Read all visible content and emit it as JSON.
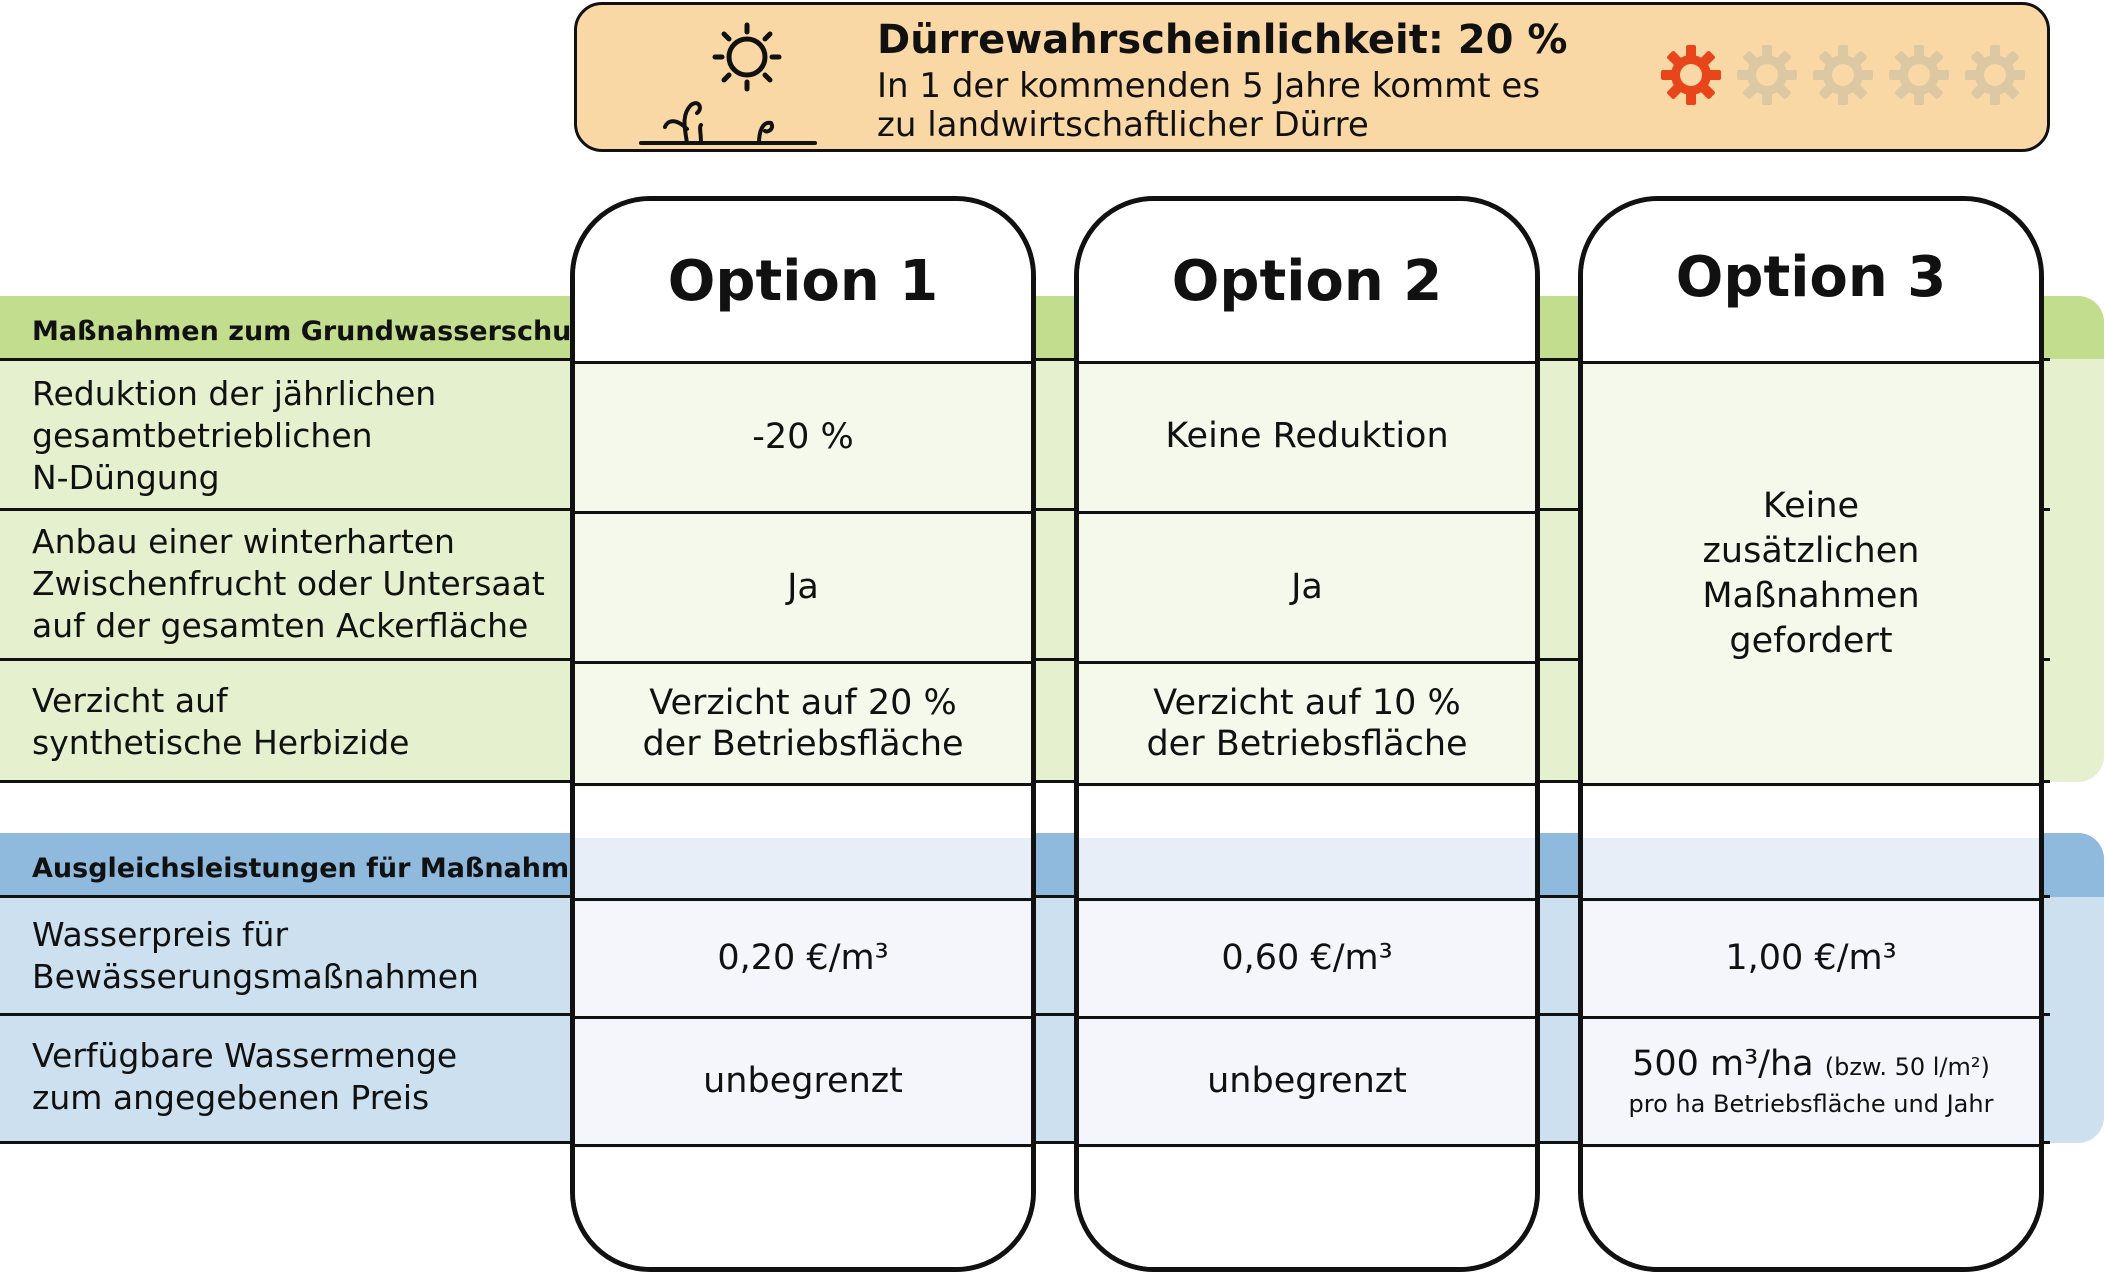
{
  "banner": {
    "title": "Dürrewahrscheinlichkeit: 20 %",
    "line1": "In 1 der kommenden 5 Jahre kommt es",
    "line2": "zu landwirtschaftlicher Dürre",
    "icons": [
      "sun-icon",
      "seedling-icon"
    ],
    "probability_level": 1,
    "probability_max": 5,
    "active_color": "#e8461a",
    "inactive_color": "#dcc8a2"
  },
  "options": [
    {
      "title": "Option 1"
    },
    {
      "title": "Option 2"
    },
    {
      "title": "Option 3"
    }
  ],
  "section_groundwater": {
    "title": "Maßnahmen zum Grundwasserschutz",
    "color": "#c3dd8e",
    "rows": [
      {
        "label": [
          "Reduktion der jährlichen",
          "gesamtbetrieblichen",
          "N-Düngung"
        ],
        "values": [
          "-20 %",
          "Keine Reduktion"
        ]
      },
      {
        "label": [
          "Anbau einer winterharten",
          "Zwischenfrucht oder Untersaat",
          "auf der gesamten Ackerfläche"
        ],
        "values": [
          "Ja",
          "Ja"
        ]
      },
      {
        "label": [
          "Verzicht auf",
          "synthetische Herbizide"
        ],
        "values": [
          [
            "Verzicht auf 20 %",
            "der Betriebsfläche"
          ],
          [
            "Verzicht auf 10 %",
            "der Betriebsfläche"
          ]
        ]
      }
    ],
    "option3_merged": [
      "Keine",
      "zusätzlichen",
      "Maßnahmen",
      "gefordert"
    ]
  },
  "section_compensation": {
    "title": "Ausgleichsleistungen für Maßnahmen",
    "color": "#8fb9dd",
    "rows": [
      {
        "label": [
          "Wasserpreis für",
          "Bewässerungsmaßnahmen"
        ],
        "values": [
          "0,20 €/m³",
          "0,60 €/m³",
          "1,00 €/m³"
        ]
      },
      {
        "label": [
          "Verfügbare Wassermenge",
          "zum angegebenen Preis"
        ],
        "values": [
          "unbegrenzt",
          "unbegrenzt"
        ],
        "option3": {
          "main": "500 m³/ha",
          "paren": "(bzw. 50 l/m²)",
          "sub": "pro ha Betriebsfläche und Jahr"
        }
      }
    ]
  }
}
